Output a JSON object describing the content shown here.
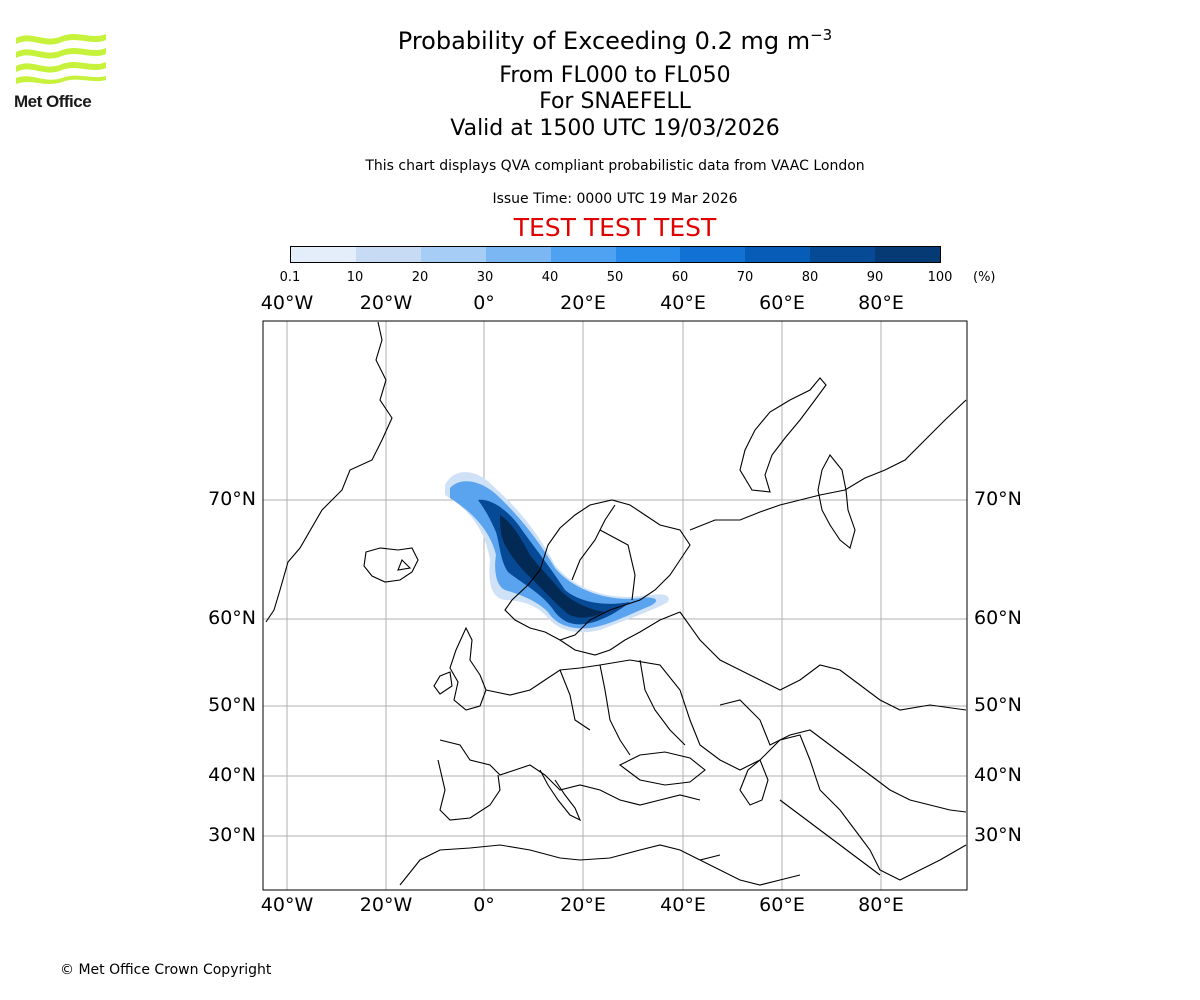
{
  "header": {
    "title_main": "Probability of Exceeding 0.2 mg m",
    "title_sup": "−3",
    "level_range": "From FL000 to FL050",
    "volcano": "For SNAEFELL",
    "valid_time": "Valid at 1500 UTC 19/03/2026",
    "description": "This chart displays QVA compliant probabilistic data from VAAC London",
    "issue_time": "Issue Time: 0000 UTC 19 Mar 2026",
    "test_banner": "TEST TEST TEST"
  },
  "logo": {
    "text": "Met Office",
    "color": "#c6f23c"
  },
  "colorbar": {
    "tick_labels": [
      "0.1",
      "10",
      "20",
      "30",
      "40",
      "50",
      "60",
      "70",
      "80",
      "90",
      "100"
    ],
    "unit": "(%)",
    "colors": [
      "#e3eefa",
      "#c7dcf4",
      "#a6cdf6",
      "#7ab7f3",
      "#4fa2f2",
      "#2a8cea",
      "#1271d4",
      "#075cb8",
      "#064a96",
      "#053a74",
      "#032a55"
    ]
  },
  "map": {
    "lon_labels": [
      "40°W",
      "20°W",
      "0°",
      "20°E",
      "40°E",
      "60°E",
      "80°E"
    ],
    "lat_labels": [
      "70°N",
      "60°N",
      "50°N",
      "40°N",
      "30°N"
    ],
    "gridline_color": "#b0b0b0"
  },
  "footer": {
    "copyright": "© Met Office Crown Copyright"
  }
}
